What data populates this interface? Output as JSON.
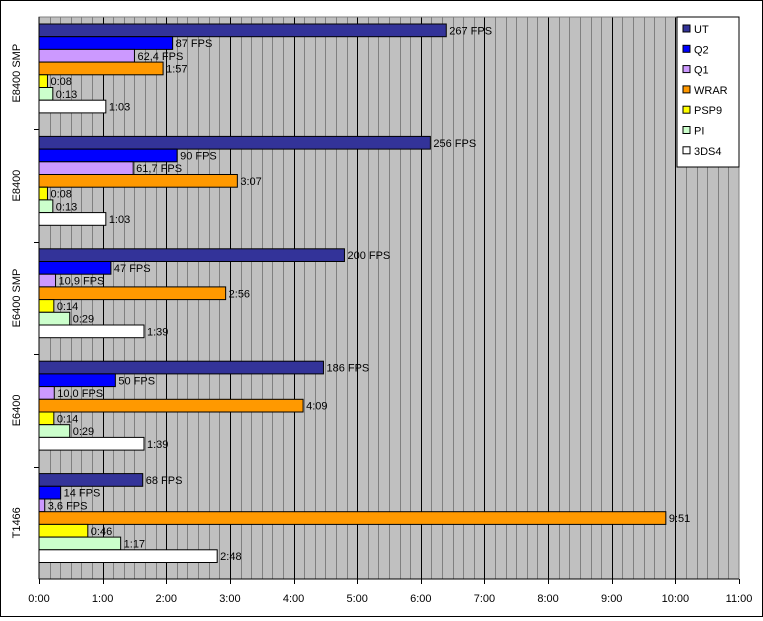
{
  "chart_data": {
    "type": "bar",
    "orientation": "horizontal",
    "title": "",
    "xlabel": "",
    "ylabel": "",
    "x_unit": "minutes",
    "xlim": [
      0,
      11
    ],
    "x_ticks": [
      {
        "value": 0,
        "label": "0:00"
      },
      {
        "value": 1,
        "label": "1:00"
      },
      {
        "value": 2,
        "label": "2:00"
      },
      {
        "value": 3,
        "label": "3:00"
      },
      {
        "value": 4,
        "label": "4:00"
      },
      {
        "value": 5,
        "label": "5:00"
      },
      {
        "value": 6,
        "label": "6:00"
      },
      {
        "value": 7,
        "label": "7:00"
      },
      {
        "value": 8,
        "label": "8:00"
      },
      {
        "value": 9,
        "label": "9:00"
      },
      {
        "value": 10,
        "label": "10:00"
      },
      {
        "value": 11,
        "label": "11:00"
      }
    ],
    "grid": "vertical",
    "legend_position": "top-right",
    "categories": [
      "E8400 SMP",
      "E8400",
      "E6400 SMP",
      "E6400",
      "T1466"
    ],
    "series": [
      {
        "name": "UT",
        "color": "#333399",
        "values": [
          6.4,
          6.15,
          4.8,
          4.47,
          1.63
        ],
        "labels": [
          "267 FPS",
          "256 FPS",
          "200 FPS",
          "186 FPS",
          "68 FPS"
        ]
      },
      {
        "name": "Q2",
        "color": "#0000ff",
        "values": [
          2.1,
          2.17,
          1.13,
          1.2,
          0.34
        ],
        "labels": [
          "87 FPS",
          "90 FPS",
          "47 FPS",
          "50 FPS",
          "14 FPS"
        ]
      },
      {
        "name": "Q1",
        "color": "#cc99ff",
        "values": [
          1.5,
          1.48,
          0.26,
          0.24,
          0.09
        ],
        "labels": [
          "62,4 FPS",
          "61,7 FPS",
          "10,9 FPS",
          "10,0 FPS",
          "3,6 FPS"
        ]
      },
      {
        "name": "WRAR",
        "color": "#ff9900",
        "values": [
          1.95,
          3.117,
          2.933,
          4.15,
          9.85
        ],
        "labels": [
          "1:57",
          "3:07",
          "2:56",
          "4:09",
          "9:51"
        ]
      },
      {
        "name": "PSP9",
        "color": "#ffff00",
        "values": [
          0.133,
          0.133,
          0.233,
          0.233,
          0.767
        ],
        "labels": [
          "0:08",
          "0:08",
          "0:14",
          "0:14",
          "0:46"
        ]
      },
      {
        "name": "PI",
        "color": "#ccffcc",
        "values": [
          0.217,
          0.217,
          0.483,
          0.483,
          1.283
        ],
        "labels": [
          "0:13",
          "0:13",
          "0:29",
          "0:29",
          "1:17"
        ]
      },
      {
        "name": "3DS4",
        "color": "#ffffff",
        "values": [
          1.05,
          1.05,
          1.65,
          1.65,
          2.8
        ],
        "labels": [
          "1:03",
          "1:03",
          "1:39",
          "1:39",
          "2:48"
        ]
      }
    ]
  }
}
